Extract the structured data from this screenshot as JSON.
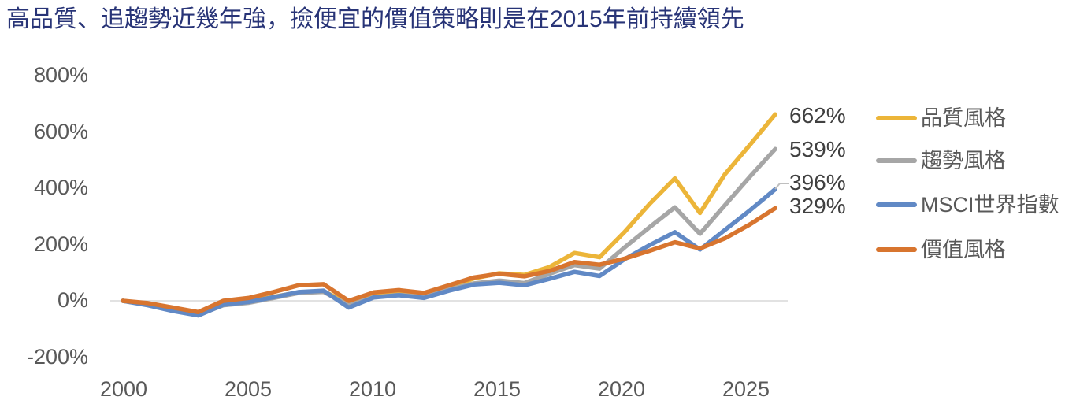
{
  "title": "高品質、追趨勢近幾年強，撿便宜的價值策略則是在2015年前持續領先",
  "colors": {
    "title_text": "#283477",
    "axis_text": "#595959",
    "end_label_text": "#404040",
    "zero_gridline": "#D9D9D9",
    "leader_line": "#BFBFBF"
  },
  "chart_data": {
    "type": "line",
    "title": "高品質、追趨勢近幾年強，撿便宜的價值策略則是在2015年前持續領先",
    "y_unit": "%",
    "ylim": [
      -200,
      800
    ],
    "xlim": [
      2000,
      2026
    ],
    "grid": "horizontal zero-line only",
    "legend_position": "right",
    "y_tick_labels": [
      "800%",
      "600%",
      "400%",
      "200%",
      "0%",
      "-200%"
    ],
    "x_tick_labels": [
      "2000",
      "2005",
      "2010",
      "2015",
      "2020",
      "2025"
    ],
    "x": [
      2000,
      2001,
      2002,
      2003,
      2004,
      2005,
      2006,
      2007,
      2008,
      2009,
      2010,
      2011,
      2012,
      2013,
      2014,
      2015,
      2016,
      2017,
      2018,
      2019,
      2020,
      2021,
      2022,
      2023,
      2024,
      2025,
      2026
    ],
    "series": [
      {
        "name": "品質風格",
        "color": "#ECB539",
        "end_label": "662%",
        "end_value": 662,
        "values": [
          0,
          -13,
          -32,
          -48,
          -12,
          -2,
          14,
          30,
          34,
          -10,
          18,
          26,
          20,
          48,
          80,
          98,
          92,
          120,
          170,
          155,
          245,
          345,
          435,
          312,
          450,
          555,
          662
        ]
      },
      {
        "name": "趨勢風格",
        "color": "#A6A6A6",
        "end_label": "539%",
        "end_value": 539,
        "values": [
          0,
          -14,
          -34,
          -50,
          -16,
          -7,
          10,
          28,
          32,
          -16,
          13,
          21,
          14,
          40,
          62,
          72,
          63,
          96,
          127,
          114,
          190,
          262,
          332,
          238,
          340,
          442,
          539
        ]
      },
      {
        "name": "MSCI世界指數",
        "color": "#6189C5",
        "end_label": "396%",
        "end_value": 396,
        "values": [
          0,
          -16,
          -36,
          -52,
          -14,
          -4,
          13,
          31,
          36,
          -24,
          12,
          20,
          10,
          36,
          58,
          64,
          55,
          78,
          103,
          88,
          148,
          198,
          244,
          182,
          252,
          322,
          396
        ]
      },
      {
        "name": "價值風格",
        "color": "#D8752F",
        "end_label": "329%",
        "end_value": 329,
        "values": [
          0,
          -8,
          -24,
          -40,
          0,
          10,
          31,
          55,
          59,
          0,
          30,
          38,
          28,
          55,
          83,
          96,
          87,
          106,
          138,
          128,
          150,
          178,
          208,
          186,
          222,
          272,
          329
        ]
      }
    ]
  }
}
